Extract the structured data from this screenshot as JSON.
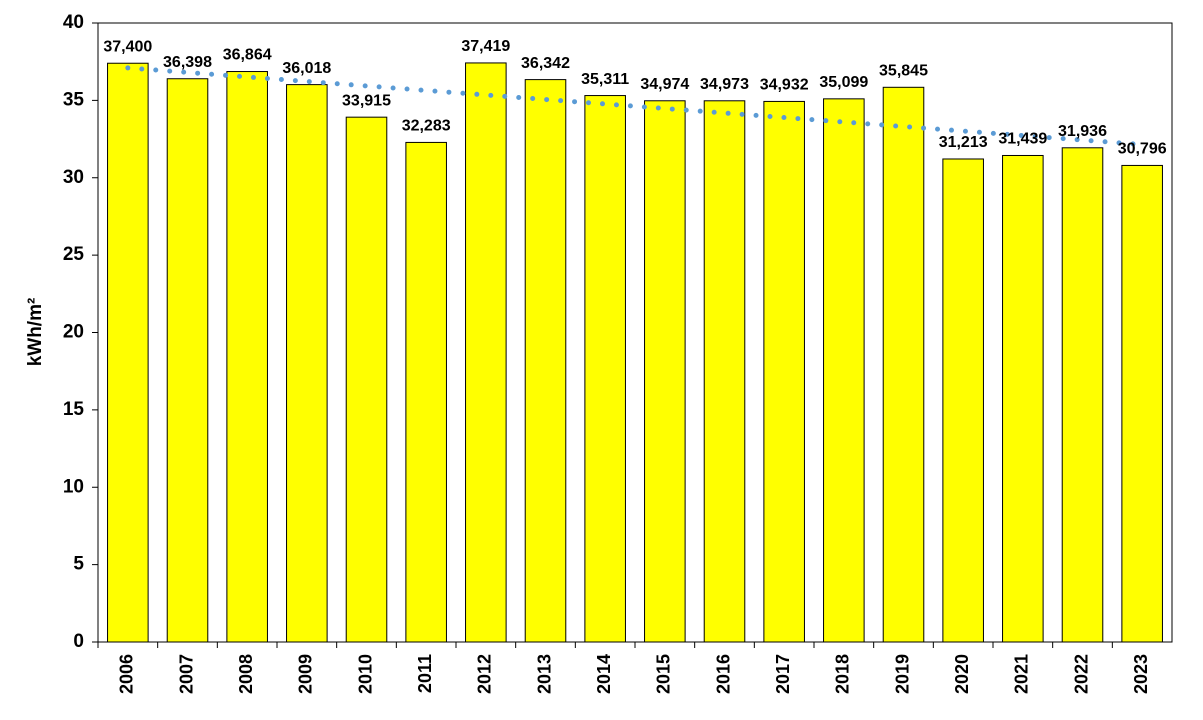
{
  "chart_data": {
    "type": "bar",
    "y_axis_label": "kWh/m²",
    "categories": [
      "2006",
      "2007",
      "2008",
      "2009",
      "2010",
      "2011",
      "2012",
      "2013",
      "2014",
      "2015",
      "2016",
      "2017",
      "2018",
      "2019",
      "2020",
      "2021",
      "2022",
      "2023"
    ],
    "values": [
      37.4,
      36.398,
      36.864,
      36.018,
      33.915,
      32.283,
      37.419,
      36.342,
      35.311,
      34.974,
      34.973,
      34.932,
      35.099,
      35.845,
      31.213,
      31.439,
      31.936,
      30.796
    ],
    "value_labels": [
      "37,400",
      "36,398",
      "36,864",
      "36,018",
      "33,915",
      "32,283",
      "37,419",
      "36,342",
      "35,311",
      "34,974",
      "34,973",
      "34,932",
      "35,099",
      "35,845",
      "31,213",
      "31,439",
      "31,936",
      "30,796"
    ],
    "color": "#ffff00",
    "trendline_color": "#5b9bd5",
    "ylim": [
      0,
      40
    ],
    "yticks": [
      0,
      5,
      10,
      15,
      20,
      25,
      30,
      35,
      40
    ],
    "grid": false
  }
}
